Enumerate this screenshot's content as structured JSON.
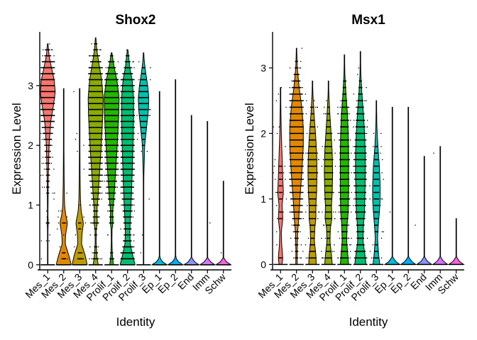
{
  "chart_data": [
    {
      "type": "violin",
      "title": "Shox2",
      "xlabel": "Identity",
      "ylabel": "Expression Level",
      "ylim": [
        -0.05,
        3.9
      ],
      "yticks": [
        0,
        1,
        2,
        3
      ],
      "categories": [
        "Mes_1",
        "Mes_2",
        "Mes_3",
        "Mes_4",
        "Prolif_1",
        "Prolif_2",
        "Prolif_3",
        "Ep_1",
        "Ep_2",
        "End",
        "Imm",
        "Schw"
      ],
      "colors": [
        "#F8766D",
        "#E18A00",
        "#BE9C00",
        "#8CAB00",
        "#24B700",
        "#00BE70",
        "#00C1AB",
        "#00BBDA",
        "#00ACFC",
        "#8B93FF",
        "#D575FE",
        "#F962DD"
      ],
      "max_values": [
        3.7,
        2.95,
        2.95,
        3.8,
        3.55,
        3.6,
        3.55,
        2.9,
        3.1,
        2.5,
        2.4,
        1.4
      ],
      "profiles": [
        [
          [
            0,
            0.01
          ],
          [
            0.4,
            0.01
          ],
          [
            0.6,
            0.03
          ],
          [
            0.7,
            0.08
          ],
          [
            0.8,
            0.03
          ],
          [
            1.0,
            0.04
          ],
          [
            1.5,
            0.08
          ],
          [
            2.0,
            0.18
          ],
          [
            2.4,
            0.4
          ],
          [
            2.7,
            0.8
          ],
          [
            2.9,
            1.0
          ],
          [
            3.1,
            0.85
          ],
          [
            3.3,
            0.5
          ],
          [
            3.5,
            0.18
          ],
          [
            3.7,
            0.04
          ]
        ],
        [
          [
            0,
            1.0
          ],
          [
            0.15,
            0.7
          ],
          [
            0.35,
            0.2
          ],
          [
            0.5,
            0.25
          ],
          [
            0.7,
            0.5
          ],
          [
            0.85,
            0.25
          ],
          [
            1.0,
            0.12
          ],
          [
            1.1,
            0.1
          ],
          [
            1.4,
            0.06
          ],
          [
            2.0,
            0.03
          ],
          [
            2.95,
            0.01
          ]
        ],
        [
          [
            0,
            1.0
          ],
          [
            0.15,
            0.75
          ],
          [
            0.35,
            0.25
          ],
          [
            0.5,
            0.3
          ],
          [
            0.7,
            0.5
          ],
          [
            0.9,
            0.2
          ],
          [
            1.1,
            0.1
          ],
          [
            1.5,
            0.05
          ],
          [
            2.0,
            0.03
          ],
          [
            2.95,
            0.01
          ]
        ],
        [
          [
            0,
            0.35
          ],
          [
            0.1,
            0.2
          ],
          [
            0.35,
            0.06
          ],
          [
            0.6,
            0.08
          ],
          [
            0.7,
            0.22
          ],
          [
            0.9,
            0.16
          ],
          [
            1.1,
            0.3
          ],
          [
            1.5,
            0.5
          ],
          [
            2.0,
            0.75
          ],
          [
            2.5,
            0.95
          ],
          [
            2.8,
            1.0
          ],
          [
            3.1,
            0.8
          ],
          [
            3.4,
            0.4
          ],
          [
            3.6,
            0.15
          ],
          [
            3.8,
            0.03
          ]
        ],
        [
          [
            0,
            0.25
          ],
          [
            0.15,
            0.1
          ],
          [
            0.4,
            0.04
          ],
          [
            0.6,
            0.06
          ],
          [
            0.7,
            0.18
          ],
          [
            0.9,
            0.14
          ],
          [
            1.1,
            0.3
          ],
          [
            1.5,
            0.5
          ],
          [
            2.0,
            0.75
          ],
          [
            2.5,
            0.95
          ],
          [
            2.8,
            1.0
          ],
          [
            3.1,
            0.7
          ],
          [
            3.3,
            0.35
          ],
          [
            3.55,
            0.04
          ]
        ],
        [
          [
            0,
            1.0
          ],
          [
            0.15,
            0.7
          ],
          [
            0.35,
            0.35
          ],
          [
            0.55,
            0.3
          ],
          [
            0.75,
            0.35
          ],
          [
            1.0,
            0.45
          ],
          [
            1.3,
            0.55
          ],
          [
            1.7,
            0.65
          ],
          [
            2.1,
            0.75
          ],
          [
            2.5,
            0.8
          ],
          [
            2.8,
            0.8
          ],
          [
            3.1,
            0.6
          ],
          [
            3.3,
            0.3
          ],
          [
            3.6,
            0.04
          ]
        ],
        [
          [
            0,
            0.01
          ],
          [
            0.6,
            0.01
          ],
          [
            0.7,
            0.03
          ],
          [
            1.0,
            0.02
          ],
          [
            1.5,
            0.04
          ],
          [
            2.0,
            0.15
          ],
          [
            2.3,
            0.4
          ],
          [
            2.6,
            0.65
          ],
          [
            2.8,
            0.7
          ],
          [
            3.0,
            0.55
          ],
          [
            3.2,
            0.3
          ],
          [
            3.4,
            0.1
          ],
          [
            3.55,
            0.02
          ]
        ],
        [
          [
            0,
            1.0
          ],
          [
            0.05,
            0.4
          ],
          [
            0.12,
            0.02
          ],
          [
            2.9,
            0.01
          ]
        ],
        [
          [
            0,
            1.0
          ],
          [
            0.05,
            0.4
          ],
          [
            0.12,
            0.02
          ],
          [
            3.1,
            0.01
          ]
        ],
        [
          [
            0,
            1.0
          ],
          [
            0.05,
            0.4
          ],
          [
            0.12,
            0.02
          ],
          [
            2.5,
            0.01
          ]
        ],
        [
          [
            0,
            1.0
          ],
          [
            0.05,
            0.4
          ],
          [
            0.12,
            0.02
          ],
          [
            2.4,
            0.01
          ]
        ],
        [
          [
            0,
            1.0
          ],
          [
            0.05,
            0.4
          ],
          [
            0.12,
            0.02
          ],
          [
            1.4,
            0.01
          ]
        ]
      ],
      "point_density": [
        900,
        120,
        120,
        700,
        600,
        600,
        350,
        30,
        25,
        18,
        15,
        8
      ]
    },
    {
      "type": "violin",
      "title": "Msx1",
      "xlabel": "Identity",
      "ylabel": "Expression Level",
      "ylim": [
        -0.05,
        3.55
      ],
      "yticks": [
        0,
        1,
        2,
        3
      ],
      "categories": [
        "Mes_1",
        "Mes_2",
        "Mes_3",
        "Mes_4",
        "Prolif_1",
        "Prolif_2",
        "Prolif_3",
        "Ep_1",
        "Ep_2",
        "End",
        "Imm",
        "Schw"
      ],
      "colors": [
        "#F8766D",
        "#E18A00",
        "#BE9C00",
        "#8CAB00",
        "#24B700",
        "#00BE70",
        "#00C1AB",
        "#00BBDA",
        "#00ACFC",
        "#8B93FF",
        "#D575FE",
        "#F962DD"
      ],
      "max_values": [
        2.7,
        3.3,
        2.8,
        2.8,
        3.2,
        3.25,
        2.5,
        2.4,
        2.4,
        1.65,
        1.8,
        0.7
      ],
      "profiles": [
        [
          [
            0,
            0.2
          ],
          [
            0.1,
            0.3
          ],
          [
            0.3,
            0.15
          ],
          [
            0.5,
            0.1
          ],
          [
            0.7,
            0.3
          ],
          [
            0.9,
            0.2
          ],
          [
            1.1,
            0.38
          ],
          [
            1.3,
            0.3
          ],
          [
            1.6,
            0.22
          ],
          [
            2.0,
            0.1
          ],
          [
            2.4,
            0.04
          ],
          [
            2.7,
            0.01
          ]
        ],
        [
          [
            0,
            0.1
          ],
          [
            0.2,
            0.08
          ],
          [
            0.5,
            0.15
          ],
          [
            0.7,
            0.3
          ],
          [
            1.0,
            0.45
          ],
          [
            1.4,
            0.7
          ],
          [
            1.8,
            0.9
          ],
          [
            2.1,
            0.9
          ],
          [
            2.4,
            0.7
          ],
          [
            2.7,
            0.35
          ],
          [
            3.0,
            0.1
          ],
          [
            3.3,
            0.02
          ]
        ],
        [
          [
            0,
            0.5
          ],
          [
            0.15,
            0.45
          ],
          [
            0.35,
            0.25
          ],
          [
            0.55,
            0.3
          ],
          [
            0.7,
            0.45
          ],
          [
            0.9,
            0.45
          ],
          [
            1.1,
            0.55
          ],
          [
            1.4,
            0.6
          ],
          [
            1.7,
            0.55
          ],
          [
            2.0,
            0.4
          ],
          [
            2.3,
            0.2
          ],
          [
            2.6,
            0.06
          ],
          [
            2.8,
            0.01
          ]
        ],
        [
          [
            0,
            0.5
          ],
          [
            0.15,
            0.4
          ],
          [
            0.35,
            0.2
          ],
          [
            0.55,
            0.25
          ],
          [
            0.7,
            0.45
          ],
          [
            0.9,
            0.4
          ],
          [
            1.1,
            0.5
          ],
          [
            1.4,
            0.55
          ],
          [
            1.7,
            0.5
          ],
          [
            2.0,
            0.35
          ],
          [
            2.3,
            0.18
          ],
          [
            2.6,
            0.05
          ],
          [
            2.8,
            0.01
          ]
        ],
        [
          [
            0,
            0.55
          ],
          [
            0.15,
            0.45
          ],
          [
            0.35,
            0.3
          ],
          [
            0.6,
            0.35
          ],
          [
            0.8,
            0.5
          ],
          [
            1.1,
            0.55
          ],
          [
            1.4,
            0.55
          ],
          [
            1.7,
            0.55
          ],
          [
            2.0,
            0.5
          ],
          [
            2.3,
            0.4
          ],
          [
            2.6,
            0.2
          ],
          [
            2.9,
            0.06
          ],
          [
            3.2,
            0.01
          ]
        ],
        [
          [
            0,
            0.75
          ],
          [
            0.15,
            0.6
          ],
          [
            0.35,
            0.35
          ],
          [
            0.6,
            0.4
          ],
          [
            0.8,
            0.55
          ],
          [
            1.1,
            0.6
          ],
          [
            1.4,
            0.65
          ],
          [
            1.7,
            0.65
          ],
          [
            2.0,
            0.55
          ],
          [
            2.3,
            0.4
          ],
          [
            2.6,
            0.2
          ],
          [
            2.9,
            0.06
          ],
          [
            3.25,
            0.01
          ]
        ],
        [
          [
            0,
            0.45
          ],
          [
            0.15,
            0.3
          ],
          [
            0.4,
            0.15
          ],
          [
            0.6,
            0.25
          ],
          [
            0.8,
            0.4
          ],
          [
            1.0,
            0.5
          ],
          [
            1.2,
            0.5
          ],
          [
            1.5,
            0.4
          ],
          [
            1.8,
            0.2
          ],
          [
            2.1,
            0.07
          ],
          [
            2.5,
            0.01
          ]
        ],
        [
          [
            0,
            1.0
          ],
          [
            0.05,
            0.4
          ],
          [
            0.12,
            0.02
          ],
          [
            2.4,
            0.01
          ]
        ],
        [
          [
            0,
            1.0
          ],
          [
            0.05,
            0.4
          ],
          [
            0.12,
            0.02
          ],
          [
            2.4,
            0.01
          ]
        ],
        [
          [
            0,
            1.0
          ],
          [
            0.05,
            0.4
          ],
          [
            0.12,
            0.02
          ],
          [
            1.65,
            0.01
          ]
        ],
        [
          [
            0,
            1.0
          ],
          [
            0.05,
            0.4
          ],
          [
            0.12,
            0.02
          ],
          [
            1.8,
            0.01
          ]
        ],
        [
          [
            0,
            1.0
          ],
          [
            0.05,
            0.4
          ],
          [
            0.12,
            0.02
          ],
          [
            0.7,
            0.01
          ]
        ]
      ],
      "point_density": [
        200,
        700,
        350,
        350,
        450,
        500,
        250,
        40,
        30,
        15,
        15,
        6
      ]
    }
  ]
}
